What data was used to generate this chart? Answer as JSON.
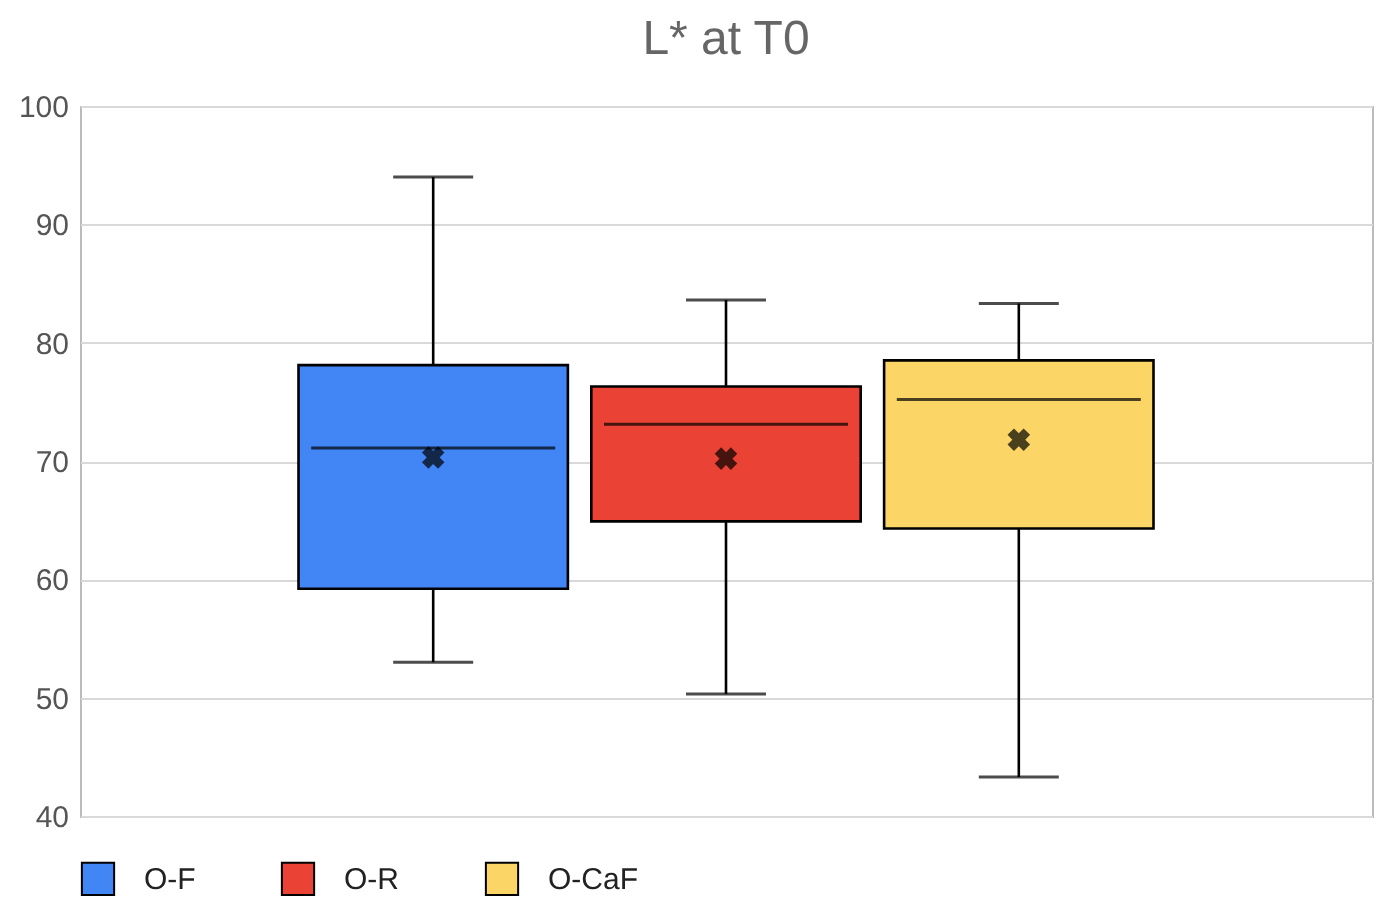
{
  "chart_data": {
    "type": "box",
    "title": "L* at T0",
    "categories": [
      null
    ],
    "series": [
      {
        "name": "O-F",
        "color": "#4285f4",
        "boxes": [
          {
            "low": 53,
            "q1": 59.2,
            "median": 71.1,
            "q3": 78.1,
            "high": 94,
            "mean": 70.3
          }
        ]
      },
      {
        "name": "O-R",
        "color": "#ea4335",
        "boxes": [
          {
            "low": 50.3,
            "q1": 64.9,
            "median": 73.1,
            "q3": 76.3,
            "high": 83.6,
            "mean": 70.2
          }
        ]
      },
      {
        "name": "O-CaF",
        "color": "#fbd566",
        "boxes": [
          {
            "low": 43.3,
            "q1": 64.3,
            "median": 75.2,
            "q3": 78.5,
            "high": 83.3,
            "mean": 71.8
          }
        ]
      }
    ],
    "ylim": [
      40,
      100
    ],
    "yticks": [
      40,
      50,
      60,
      70,
      80,
      90,
      100
    ],
    "grid": "y",
    "legend": "bottom",
    "tick_labels": "y"
  }
}
